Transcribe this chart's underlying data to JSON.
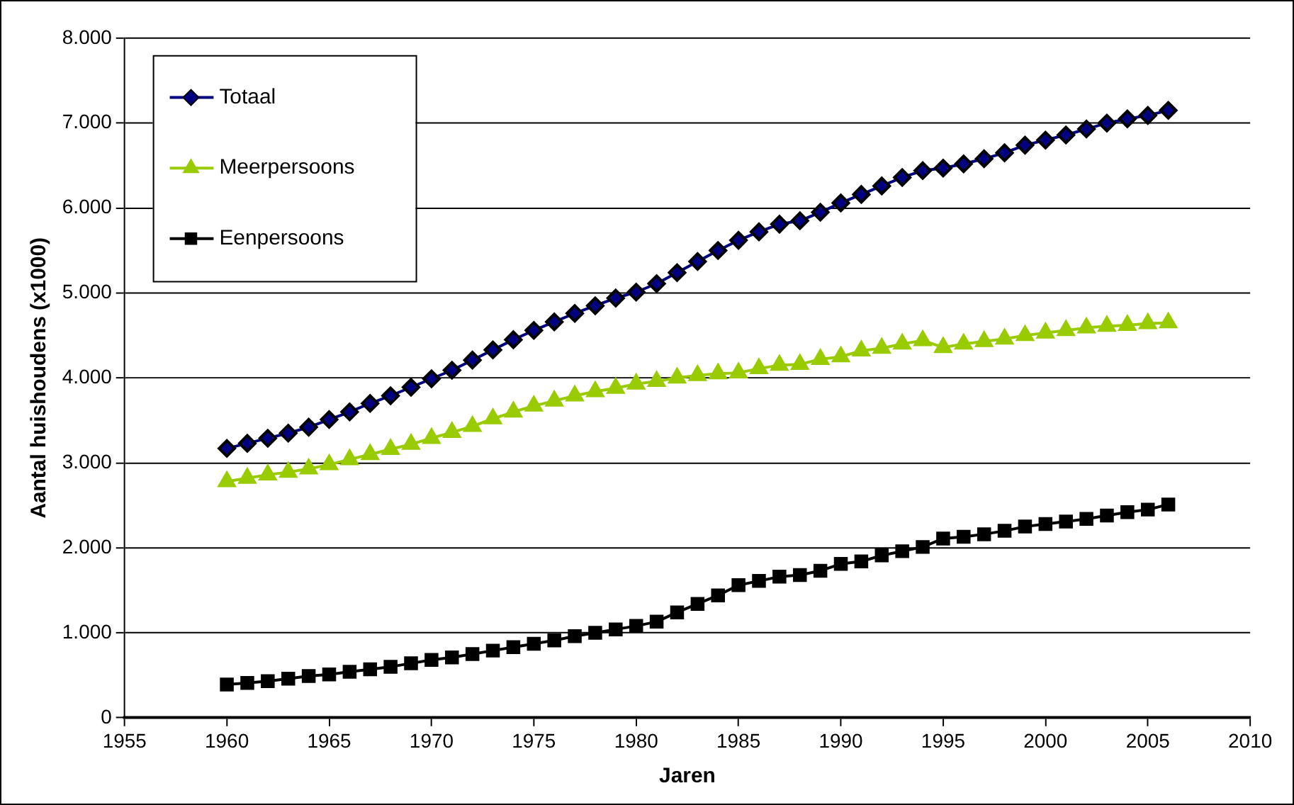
{
  "chart_data": {
    "type": "line",
    "xlabel": "Jaren",
    "ylabel": "Aantal huishoudens (x1000)",
    "x": [
      1960,
      1961,
      1962,
      1963,
      1964,
      1965,
      1966,
      1967,
      1968,
      1969,
      1970,
      1971,
      1972,
      1973,
      1974,
      1975,
      1976,
      1977,
      1978,
      1979,
      1980,
      1981,
      1982,
      1983,
      1984,
      1985,
      1986,
      1987,
      1988,
      1989,
      1990,
      1991,
      1992,
      1993,
      1994,
      1995,
      1996,
      1997,
      1998,
      1999,
      2000,
      2001,
      2002,
      2003,
      2004,
      2005,
      2006
    ],
    "series": [
      {
        "name": "Totaal",
        "color": "#000080",
        "marker": "diamond",
        "values": [
          3170,
          3230,
          3290,
          3350,
          3420,
          3510,
          3600,
          3700,
          3790,
          3890,
          3990,
          4090,
          4210,
          4330,
          4450,
          4560,
          4660,
          4760,
          4850,
          4940,
          5010,
          5110,
          5240,
          5370,
          5500,
          5620,
          5720,
          5810,
          5850,
          5950,
          6060,
          6160,
          6260,
          6360,
          6440,
          6470,
          6520,
          6580,
          6650,
          6740,
          6800,
          6860,
          6930,
          7000,
          7050,
          7090,
          7150
        ]
      },
      {
        "name": "Meerpersoons",
        "color": "#99cc00",
        "marker": "triangle",
        "values": [
          2780,
          2820,
          2860,
          2890,
          2930,
          2980,
          3040,
          3100,
          3160,
          3220,
          3290,
          3360,
          3430,
          3520,
          3600,
          3670,
          3730,
          3790,
          3840,
          3880,
          3930,
          3960,
          4000,
          4030,
          4050,
          4060,
          4110,
          4150,
          4160,
          4220,
          4250,
          4320,
          4350,
          4400,
          4440,
          4360,
          4400,
          4430,
          4460,
          4500,
          4530,
          4560,
          4590,
          4610,
          4620,
          4640,
          4650
        ]
      },
      {
        "name": "Eenpersoons",
        "color": "#000000",
        "marker": "square",
        "values": [
          390,
          410,
          430,
          460,
          490,
          510,
          540,
          570,
          600,
          640,
          680,
          710,
          750,
          790,
          830,
          870,
          910,
          960,
          1000,
          1040,
          1080,
          1130,
          1240,
          1340,
          1440,
          1560,
          1610,
          1660,
          1680,
          1730,
          1810,
          1840,
          1910,
          1960,
          2010,
          2110,
          2130,
          2160,
          2200,
          2250,
          2280,
          2310,
          2340,
          2380,
          2420,
          2450,
          2510
        ]
      }
    ],
    "xlim": [
      1955,
      2010
    ],
    "xticks": [
      1955,
      1960,
      1965,
      1970,
      1975,
      1980,
      1985,
      1990,
      1995,
      2000,
      2005,
      2010
    ],
    "ylim": [
      0,
      8000
    ],
    "yticks": [
      {
        "value": 0,
        "label": "0"
      },
      {
        "value": 1000,
        "label": "1.000"
      },
      {
        "value": 2000,
        "label": "2.000"
      },
      {
        "value": 3000,
        "label": "3.000"
      },
      {
        "value": 4000,
        "label": "4.000"
      },
      {
        "value": 5000,
        "label": "5.000"
      },
      {
        "value": 6000,
        "label": "6.000"
      },
      {
        "value": 7000,
        "label": "7.000"
      },
      {
        "value": 8000,
        "label": "8.000"
      }
    ],
    "grid": "y",
    "legend": "top left",
    "line_style": "solid"
  }
}
